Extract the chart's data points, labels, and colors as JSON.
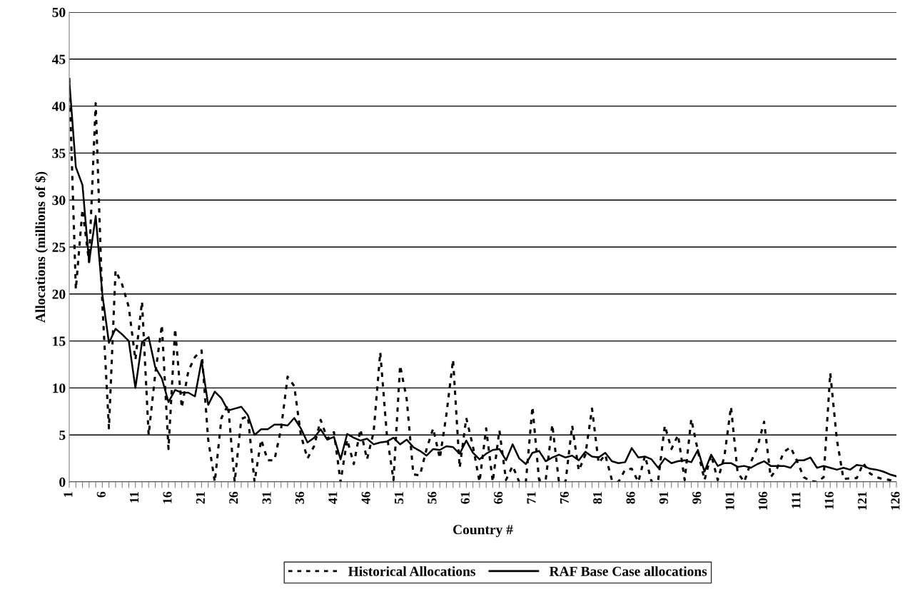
{
  "chart_data": {
    "type": "line",
    "xlabel": "Country #",
    "ylabel": "Allocations (millions of $)",
    "categories": [
      "1",
      null,
      null,
      null,
      null,
      "6",
      null,
      null,
      null,
      null,
      "11",
      null,
      null,
      null,
      null,
      "16",
      null,
      null,
      null,
      null,
      "21",
      null,
      null,
      null,
      null,
      "26",
      null,
      null,
      null,
      null,
      "31",
      null,
      null,
      null,
      null,
      "36",
      null,
      null,
      null,
      null,
      "41",
      null,
      null,
      null,
      null,
      "46",
      null,
      null,
      null,
      null,
      "51",
      null,
      null,
      null,
      null,
      "56",
      null,
      null,
      null,
      null,
      "61",
      null,
      null,
      null,
      null,
      "66",
      null,
      null,
      null,
      null,
      "71",
      null,
      null,
      null,
      null,
      "76",
      null,
      null,
      null,
      null,
      "81",
      null,
      null,
      null,
      null,
      "86",
      null,
      null,
      null,
      null,
      "91",
      null,
      null,
      null,
      null,
      "96",
      null,
      null,
      null,
      null,
      "101",
      null,
      null,
      null,
      null,
      "106",
      null,
      null,
      null,
      null,
      "111",
      null,
      null,
      null,
      null,
      "116",
      null,
      null,
      null,
      null,
      "121",
      null,
      null,
      null,
      null,
      "126"
    ],
    "series": [
      {
        "name": "Historical Allocations",
        "color": "#000000",
        "line_style": "dotted",
        "values": [
          43,
          20.5,
          29,
          23.4,
          40.3,
          19,
          5.7,
          22.5,
          21,
          18.6,
          13,
          19.2,
          5,
          11.5,
          16.7,
          3.5,
          16.3,
          7.9,
          11.8,
          13.3,
          14,
          4.5,
          0,
          6.8,
          8.2,
          0,
          6.7,
          7.0,
          0,
          4.5,
          2.3,
          2.3,
          5.6,
          11.2,
          10.2,
          5,
          2.5,
          3.8,
          6.6,
          4.6,
          5.3,
          0,
          4.5,
          1.9,
          5.6,
          2.4,
          5.3,
          13.8,
          5,
          0.2,
          12.4,
          8.8,
          0.8,
          0.7,
          3.5,
          5.7,
          2.5,
          7.2,
          13,
          1.5,
          6.8,
          3.8,
          0,
          5.7,
          0,
          5.5,
          0.2,
          1.7,
          0,
          0,
          8,
          0.2,
          0.2,
          6.1,
          0,
          0,
          6,
          1.2,
          2.9,
          7.8,
          2,
          2.9,
          0.2,
          0,
          1.3,
          1.4,
          0,
          2.8,
          0,
          0.2,
          6,
          3.5,
          5,
          0.2,
          6.7,
          3.3,
          0.2,
          2.9,
          0.2,
          2.7,
          8,
          1,
          0,
          2.1,
          3.7,
          6.4,
          0.5,
          1.5,
          3.2,
          3.7,
          2.2,
          0.5,
          0.1,
          0,
          0.5,
          11.6,
          4.5,
          0.3,
          0.4,
          0.4,
          2.0,
          0.9,
          0.5,
          0.3,
          0.2,
          0
        ]
      },
      {
        "name": "RAF Base Case allocations",
        "color": "#000000",
        "line_style": "solid",
        "values": [
          42.8,
          33.5,
          31.6,
          23.4,
          28.3,
          20,
          14.8,
          16.3,
          15.7,
          15,
          10,
          14.9,
          15.4,
          12.2,
          11,
          8.5,
          9.8,
          9.5,
          9.5,
          9.1,
          12.9,
          8.2,
          9.6,
          8.9,
          7.6,
          7.8,
          8,
          7.1,
          5,
          5.6,
          5.6,
          6.1,
          6.1,
          6,
          6.8,
          5.7,
          4.2,
          4.7,
          5.6,
          4.5,
          4.8,
          2.4,
          5.1,
          4.7,
          4.4,
          4.6,
          4,
          4.2,
          4.3,
          4.7,
          4,
          4.5,
          3.7,
          3.3,
          2.8,
          3.5,
          3.4,
          3.8,
          3.7,
          3,
          4.4,
          3.1,
          2.4,
          3,
          3.4,
          3.5,
          2.3,
          4,
          2.5,
          1.9,
          3.1,
          3.3,
          2.2,
          2.6,
          2.9,
          2.6,
          2.8,
          2.3,
          3.2,
          2.7,
          2.6,
          3.1,
          2.2,
          2.0,
          2.1,
          3.6,
          2.6,
          2.7,
          2.4,
          1.5,
          2.5,
          2.0,
          2.2,
          2.3,
          2.1,
          3.4,
          1.1,
          2.9,
          1.7,
          2.0,
          2.0,
          1.6,
          1.7,
          1.5,
          1.9,
          2.2,
          1.7,
          1.7,
          1.7,
          1.5,
          2.3,
          2.3,
          2.6,
          1.5,
          1.7,
          1.5,
          1.3,
          1.5,
          1.3,
          1.8,
          1.7,
          1.4,
          1.3,
          1.1,
          0.8,
          0.6
        ]
      }
    ],
    "ylim": [
      0,
      50
    ],
    "yticks": [
      0,
      5,
      10,
      15,
      20,
      25,
      30,
      35,
      40,
      45,
      50
    ],
    "grid": "y",
    "legend": "bottom",
    "marker": "none"
  }
}
